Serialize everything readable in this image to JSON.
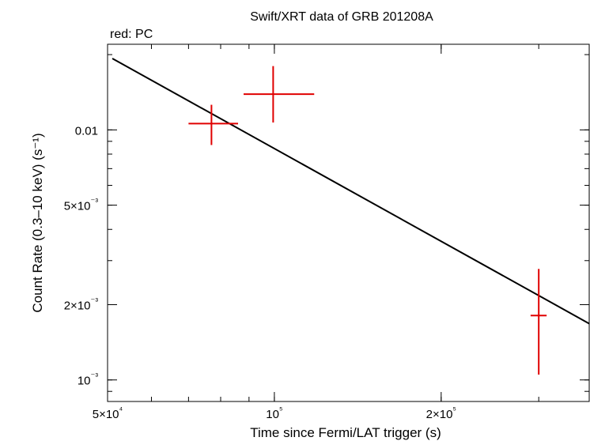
{
  "chart_data": {
    "type": "scatter",
    "title": "Swift/XRT data of GRB 201208A",
    "subtitle": "red: PC",
    "xlabel": "Time since Fermi/LAT trigger (s)",
    "ylabel": "Count Rate (0.3–10 keV) (s⁻¹)",
    "x_scale": "log",
    "y_scale": "log",
    "xlim": [
      50000,
      370000
    ],
    "ylim": [
      0.00082,
      0.022
    ],
    "x_ticks": [
      {
        "value": 50000,
        "label": "5×10⁴"
      },
      {
        "value": 100000,
        "label": "10⁵"
      },
      {
        "value": 200000,
        "label": "2×10⁵"
      }
    ],
    "y_ticks": [
      {
        "value": 0.001,
        "label": "10⁻³"
      },
      {
        "value": 0.002,
        "label": "2×10⁻³"
      },
      {
        "value": 0.005,
        "label": "5×10⁻³"
      },
      {
        "value": 0.01,
        "label": "0.01"
      }
    ],
    "series": [
      {
        "color": "#e00000",
        "points": [
          {
            "x": 77000,
            "xerr": [
              70000,
              86000
            ],
            "y": 0.0106,
            "yerr": [
              0.0087,
              0.0126
            ]
          },
          {
            "x": 99500,
            "xerr": [
              88000,
              118000
            ],
            "y": 0.0139,
            "yerr": [
              0.0107,
              0.018
            ]
          },
          {
            "x": 300000,
            "xerr": [
              290000,
              310000
            ],
            "y": 0.00181,
            "yerr": [
              0.00105,
              0.00278
            ]
          }
        ]
      }
    ],
    "model": {
      "color": "#000000",
      "points": [
        {
          "x": 51000,
          "y": 0.0193
        },
        {
          "x": 370000,
          "y": 0.00168
        }
      ]
    },
    "grid": false,
    "legend": "none"
  }
}
